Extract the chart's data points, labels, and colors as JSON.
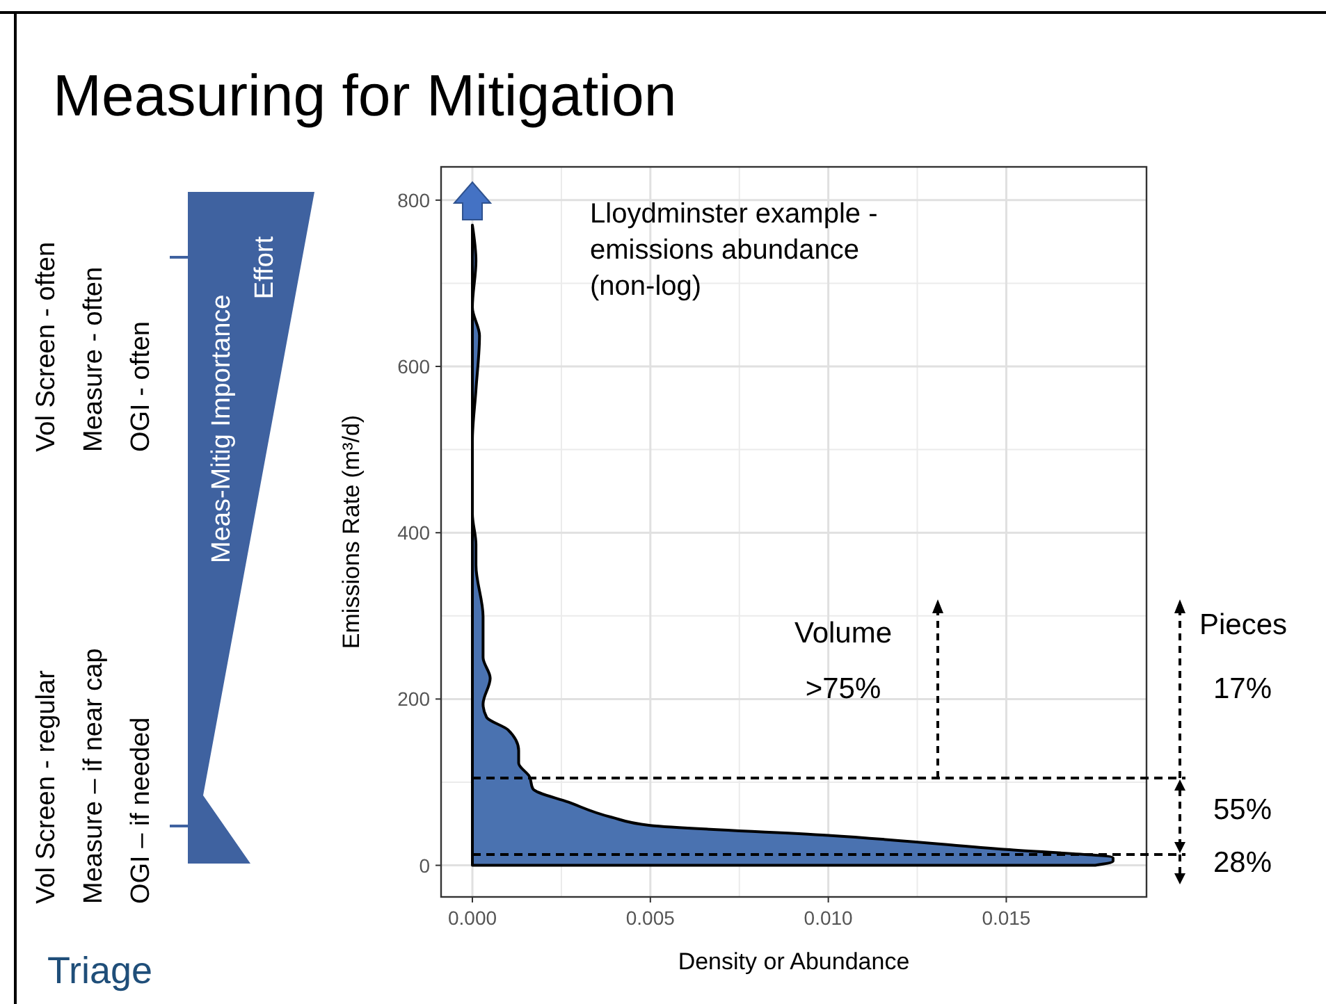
{
  "chart_data": {
    "type": "area",
    "orientation": "horizontal",
    "title": "Measuring for Mitigation",
    "xlabel": "Density or Abundance",
    "ylabel": "Emissions Rate (m³/d)",
    "x": [
      0,
      5,
      9,
      19,
      36,
      48,
      58,
      76,
      92,
      107,
      123,
      138,
      163,
      178,
      194,
      225,
      250,
      299,
      361,
      386,
      423,
      510,
      572,
      637,
      671,
      727,
      770
    ],
    "values": [
      0.0175,
      0.018,
      0.018,
      0.015,
      0.01,
      0.005,
      0.0039,
      0.0027,
      0.0017,
      0.0016,
      0.0013,
      0.0013,
      0.001,
      0.0004,
      0.0003,
      0.0005,
      0.0003,
      0.0003,
      0.0001,
      0.0001,
      0,
      0,
      0.0001,
      0.0002,
      0,
      0.0001,
      0
    ],
    "color": "#4a72b0",
    "xlim": [
      -0.00088,
      0.01894
    ],
    "xticks": [
      {
        "value": 0,
        "label": "0.000"
      },
      {
        "value": 0.005,
        "label": "0.005"
      },
      {
        "value": 0.01,
        "label": "0.010"
      },
      {
        "value": 0.015,
        "label": "0.015"
      }
    ],
    "ylim": [
      -38,
      840
    ],
    "yticks": [
      0,
      200,
      400,
      600,
      800
    ],
    "grid": true,
    "ref_lines": [
      {
        "axis": "y",
        "value": 105,
        "line_style": "dashed"
      },
      {
        "axis": "y",
        "value": 13,
        "line_style": "dashed"
      }
    ],
    "annotations": [
      "Lloydminster example -\nemissions abundance\n(non-log)",
      "Volume",
      ">75%",
      "Pieces",
      "17%",
      "55%",
      "28%",
      "Vol Screen - often",
      "Measure - often",
      "OGI - often",
      "Vol Screen - regular",
      "Measure – if near cap",
      "OGI – if needed",
      "Meas-Mitig Importance",
      "Effort",
      "Triage"
    ]
  }
}
